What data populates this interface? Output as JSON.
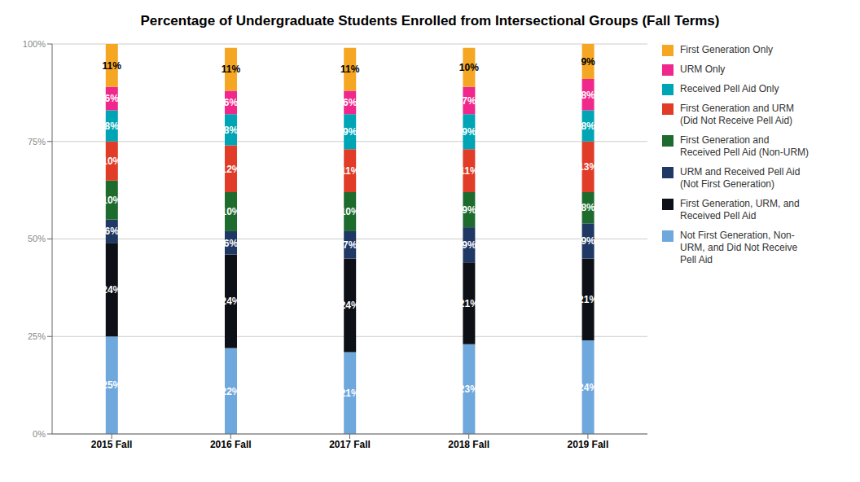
{
  "chart_data": {
    "type": "bar",
    "title": "Percentage of Undergraduate Students Enrolled from Intersectional Groups (Fall Terms)",
    "stacked": true,
    "data_labels": true,
    "grid": true,
    "legend": "right",
    "categories": [
      "2015 Fall",
      "2016 Fall",
      "2017 Fall",
      "2018 Fall",
      "2019 Fall"
    ],
    "series": [
      {
        "name": "Not First Generation, Non-\nURM, and Did Not Receive\nPell Aid",
        "color": "#6fa8dc",
        "values": [
          25,
          22,
          21,
          23,
          24
        ],
        "value_labels": [
          "25%",
          "22%",
          "21%",
          "23%",
          "24%"
        ]
      },
      {
        "name": "First Generation, URM, and\nReceived Pell Aid",
        "color": "#0d1117",
        "values": [
          24,
          24,
          24,
          21,
          21
        ],
        "value_labels": [
          "24%",
          "24%",
          "24%",
          "21%",
          "21%"
        ]
      },
      {
        "name": "URM and Received Pell Aid\n(Not First Generation)",
        "color": "#1f3864",
        "values": [
          6,
          6,
          7,
          9,
          9
        ],
        "value_labels": [
          "6%",
          "6%",
          "7%",
          "9%",
          "9%"
        ]
      },
      {
        "name": "First Generation and\nReceived Pell Aid (Non-URM)",
        "color": "#1e6b2e",
        "values": [
          10,
          10,
          10,
          9,
          8
        ],
        "value_labels": [
          "10%",
          "10%",
          "10%",
          "9%",
          "8%"
        ]
      },
      {
        "name": "First Generation and URM\n(Did Not Receive Pell Aid)",
        "color": "#e03c28",
        "values": [
          10,
          12,
          11,
          11,
          13
        ],
        "value_labels": [
          "10%",
          "12%",
          "11%",
          "11%",
          "13%"
        ]
      },
      {
        "name": "Received Pell Aid Only",
        "color": "#00a5b5",
        "values": [
          8,
          8,
          9,
          9,
          8
        ],
        "value_labels": [
          "8%",
          "8%",
          "9%",
          "9%",
          "8%"
        ]
      },
      {
        "name": "URM Only",
        "color": "#f0288c",
        "values": [
          6,
          6,
          6,
          7,
          8
        ],
        "value_labels": [
          "6%",
          "6%",
          "6%",
          "7%",
          "8%"
        ]
      },
      {
        "name": "First Generation Only",
        "color": "#f5a623",
        "values": [
          11,
          11,
          11,
          10,
          9
        ],
        "value_labels": [
          "11%",
          "11%",
          "11%",
          "10%",
          "9%"
        ]
      }
    ],
    "ylim": [
      0,
      100
    ],
    "yticks": [
      {
        "value": 0,
        "label": "0%"
      },
      {
        "value": 25,
        "label": "25%"
      },
      {
        "value": 50,
        "label": "50%"
      },
      {
        "value": 75,
        "label": "75%"
      },
      {
        "value": 100,
        "label": "100%"
      }
    ]
  }
}
